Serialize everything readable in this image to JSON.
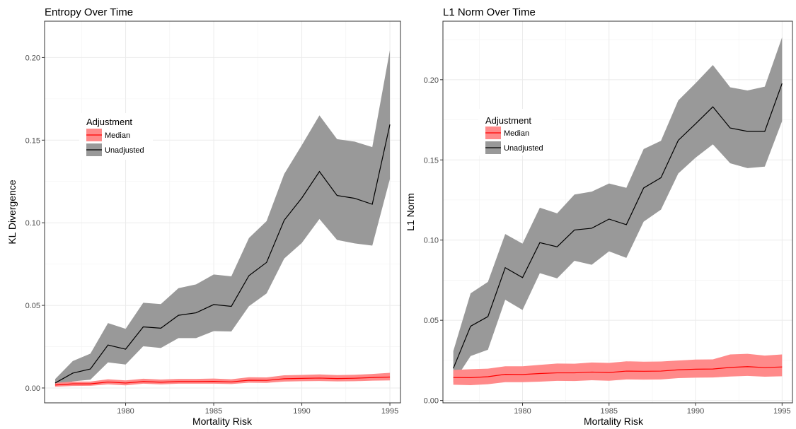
{
  "chart_data": [
    {
      "type": "line",
      "title": "Entropy Over Time",
      "xlabel": "Mortality Risk",
      "ylabel": "KL Divergence",
      "xlim": [
        1975.4,
        1995.6
      ],
      "ylim": [
        -0.009,
        0.222
      ],
      "x_ticks": [
        1980,
        1985,
        1990,
        1995
      ],
      "x_tick_labels": [
        "1980",
        "1985",
        "1990",
        "1995"
      ],
      "y_ticks": [
        0.0,
        0.05,
        0.1,
        0.15,
        0.2
      ],
      "y_tick_labels": [
        "0.00",
        "0.05",
        "0.10",
        "0.15",
        "0.20"
      ],
      "grid": true,
      "legend": {
        "title": "Adjustment",
        "placement": "upper-left",
        "entries": [
          "Median",
          "Unadjusted"
        ]
      },
      "x": [
        1976,
        1977,
        1978,
        1979,
        1980,
        1981,
        1982,
        1983,
        1984,
        1985,
        1986,
        1987,
        1988,
        1989,
        1990,
        1991,
        1992,
        1993,
        1994,
        1995
      ],
      "series": [
        {
          "name": "Unadjusted",
          "color": "#000000",
          "band_color": "#999999",
          "values": [
            0.003,
            0.009,
            0.0115,
            0.026,
            0.0235,
            0.037,
            0.0362,
            0.044,
            0.0455,
            0.0505,
            0.0494,
            0.068,
            0.076,
            0.1015,
            0.115,
            0.131,
            0.1165,
            0.1148,
            0.1112,
            0.1595
          ],
          "lower": [
            0.001,
            0.004,
            0.005,
            0.0155,
            0.0142,
            0.0253,
            0.0242,
            0.0302,
            0.0302,
            0.0344,
            0.0342,
            0.0495,
            0.0572,
            0.0783,
            0.0878,
            0.1023,
            0.0896,
            0.0875,
            0.0862,
            0.1265
          ],
          "upper": [
            0.0054,
            0.0163,
            0.0208,
            0.0393,
            0.0358,
            0.0516,
            0.0508,
            0.0604,
            0.0627,
            0.0687,
            0.0676,
            0.0908,
            0.101,
            0.1295,
            0.147,
            0.165,
            0.1506,
            0.1491,
            0.1458,
            0.2045
          ]
        },
        {
          "name": "Median",
          "color": "#ff0000",
          "band_color": "#ff8a8a",
          "values": [
            0.0018,
            0.0025,
            0.0025,
            0.0036,
            0.003,
            0.0039,
            0.0035,
            0.0039,
            0.0039,
            0.004,
            0.0037,
            0.0047,
            0.0046,
            0.0056,
            0.0058,
            0.006,
            0.0057,
            0.0059,
            0.0063,
            0.0066
          ],
          "lower": [
            0.0008,
            0.0012,
            0.0013,
            0.0022,
            0.0016,
            0.0026,
            0.0022,
            0.0026,
            0.0026,
            0.0026,
            0.0024,
            0.0032,
            0.0031,
            0.0039,
            0.0041,
            0.0042,
            0.004,
            0.0041,
            0.0044,
            0.0046
          ],
          "upper": [
            0.0031,
            0.0039,
            0.0039,
            0.0053,
            0.0046,
            0.0056,
            0.0051,
            0.0055,
            0.0055,
            0.0057,
            0.0053,
            0.0065,
            0.0064,
            0.0077,
            0.0079,
            0.0082,
            0.0078,
            0.008,
            0.0085,
            0.0092
          ]
        }
      ]
    },
    {
      "type": "line",
      "title": "L1 Norm Over Time",
      "xlabel": "Mortality Risk",
      "ylabel": "L1 Norm",
      "xlim": [
        1975.4,
        1995.6
      ],
      "ylim": [
        -0.0015,
        0.2365
      ],
      "x_ticks": [
        1980,
        1985,
        1990,
        1995
      ],
      "x_tick_labels": [
        "1980",
        "1985",
        "1990",
        "1995"
      ],
      "y_ticks": [
        0.0,
        0.05,
        0.1,
        0.15,
        0.2
      ],
      "y_tick_labels": [
        "0.00",
        "0.05",
        "0.10",
        "0.15",
        "0.20"
      ],
      "grid": true,
      "legend": {
        "title": "Adjustment",
        "placement": "upper-left",
        "entries": [
          "Median",
          "Unadjusted"
        ]
      },
      "x": [
        1976,
        1977,
        1978,
        1979,
        1980,
        1981,
        1982,
        1983,
        1984,
        1985,
        1986,
        1987,
        1988,
        1989,
        1990,
        1991,
        1992,
        1993,
        1994,
        1995
      ],
      "series": [
        {
          "name": "Unadjusted",
          "color": "#000000",
          "band_color": "#999999",
          "values": [
            0.02,
            0.0463,
            0.0523,
            0.0828,
            0.0766,
            0.0984,
            0.0958,
            0.1063,
            0.1074,
            0.1131,
            0.1096,
            0.1325,
            0.1389,
            0.1622,
            0.1725,
            0.1831,
            0.1699,
            0.1678,
            0.1678,
            0.1977
          ],
          "lower": [
            0.0112,
            0.0277,
            0.0316,
            0.0628,
            0.0564,
            0.0794,
            0.0761,
            0.0871,
            0.0846,
            0.093,
            0.0889,
            0.1115,
            0.119,
            0.1415,
            0.1514,
            0.1597,
            0.1479,
            0.1449,
            0.1458,
            0.1742
          ],
          "upper": [
            0.0308,
            0.0668,
            0.0739,
            0.1038,
            0.0978,
            0.1202,
            0.1167,
            0.1284,
            0.1302,
            0.1353,
            0.1326,
            0.1568,
            0.1619,
            0.1871,
            0.1978,
            0.2092,
            0.1953,
            0.1933,
            0.1957,
            0.2265
          ]
        },
        {
          "name": "Median",
          "color": "#ff0000",
          "band_color": "#ff8a8a",
          "values": [
            0.0143,
            0.0142,
            0.0148,
            0.0163,
            0.0162,
            0.0168,
            0.0172,
            0.0172,
            0.0177,
            0.0174,
            0.0183,
            0.0182,
            0.0183,
            0.0191,
            0.0195,
            0.0196,
            0.0206,
            0.0211,
            0.0205,
            0.0209
          ],
          "lower": [
            0.0098,
            0.0095,
            0.0101,
            0.0114,
            0.0114,
            0.0117,
            0.0122,
            0.0121,
            0.0126,
            0.0123,
            0.0131,
            0.013,
            0.0131,
            0.0139,
            0.0142,
            0.0143,
            0.0149,
            0.0153,
            0.0148,
            0.0151
          ],
          "upper": [
            0.019,
            0.0195,
            0.0198,
            0.0213,
            0.0213,
            0.0222,
            0.023,
            0.0229,
            0.0237,
            0.0234,
            0.0244,
            0.0242,
            0.0243,
            0.0249,
            0.0255,
            0.0256,
            0.0287,
            0.0291,
            0.028,
            0.0287
          ]
        }
      ]
    }
  ]
}
